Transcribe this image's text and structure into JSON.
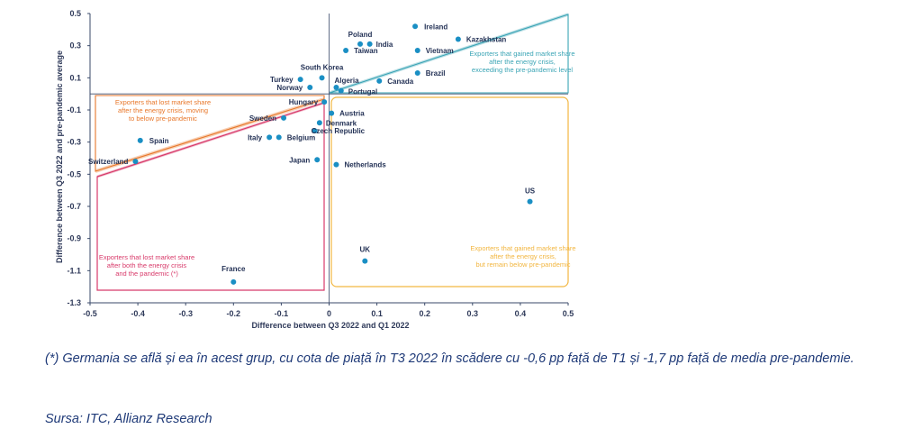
{
  "chart_data": {
    "type": "scatter",
    "title": "",
    "xlabel": "Difference between Q3 2022 and Q1 2022",
    "ylabel": "Difference between Q3 2022 and pre-pandemic average",
    "xlim": [
      -0.5,
      0.5
    ],
    "ylim": [
      -1.3,
      0.5
    ],
    "x_ticks": [
      "-0.5",
      "-0.4",
      "-0.3",
      "-0.2",
      "-0.1",
      "0",
      "0.1",
      "0.2",
      "0.3",
      "0.4",
      "0.5"
    ],
    "y_ticks": [
      "0.5",
      "0.3",
      "0.1",
      "-0.1",
      "-0.3",
      "-0.5",
      "-0.7",
      "-0.9",
      "-1.1",
      "-1.3"
    ],
    "point_color": "#1a8fc4",
    "points": [
      {
        "label": "Ireland",
        "x": 0.18,
        "y": 0.42
      },
      {
        "label": "Kazakhstan",
        "x": 0.27,
        "y": 0.34
      },
      {
        "label": "Poland",
        "x": 0.065,
        "y": 0.31
      },
      {
        "label": "India",
        "x": 0.085,
        "y": 0.31
      },
      {
        "label": "Taiwan",
        "x": 0.035,
        "y": 0.27
      },
      {
        "label": "Vietnam",
        "x": 0.185,
        "y": 0.27
      },
      {
        "label": "South Korea",
        "x": -0.015,
        "y": 0.1
      },
      {
        "label": "Brazil",
        "x": 0.185,
        "y": 0.13
      },
      {
        "label": "Turkey",
        "x": -0.06,
        "y": 0.09
      },
      {
        "label": "Algeria",
        "x": 0.015,
        "y": 0.04
      },
      {
        "label": "Canada",
        "x": 0.105,
        "y": 0.08
      },
      {
        "label": "Norway",
        "x": -0.04,
        "y": 0.04
      },
      {
        "label": "Portugal",
        "x": 0.025,
        "y": 0.02
      },
      {
        "label": "Hungary",
        "x": -0.01,
        "y": -0.05
      },
      {
        "label": "Austria",
        "x": 0.005,
        "y": -0.12
      },
      {
        "label": "Sweden",
        "x": -0.095,
        "y": -0.15
      },
      {
        "label": "Denmark",
        "x": -0.02,
        "y": -0.18
      },
      {
        "label": "Czech Republic",
        "x": -0.03,
        "y": -0.23
      },
      {
        "label": "Spain",
        "x": -0.395,
        "y": -0.29
      },
      {
        "label": "Italy",
        "x": -0.125,
        "y": -0.27
      },
      {
        "label": "Belgium",
        "x": -0.105,
        "y": -0.27
      },
      {
        "label": "Switzerland",
        "x": -0.405,
        "y": -0.42
      },
      {
        "label": "Japan",
        "x": -0.025,
        "y": -0.41
      },
      {
        "label": "Netherlands",
        "x": 0.015,
        "y": -0.44
      },
      {
        "label": "US",
        "x": 0.42,
        "y": -0.67
      },
      {
        "label": "UK",
        "x": 0.075,
        "y": -1.04
      },
      {
        "label": "France",
        "x": -0.2,
        "y": -1.17
      }
    ],
    "regions": [
      {
        "label": "Exporters that gained market share after the energy crisis, exceeding the pre-pandemic level",
        "color": "#3aa4b5"
      },
      {
        "label": "Exporters that lost market share after the energy crisis, moving to below pre-pandemic",
        "color": "#e8772a"
      },
      {
        "label": "Exporters that lost market share after both the energy crisis and the pandemic (*)",
        "color": "#d83a6a"
      },
      {
        "label": "Exporters that gained market share after the energy crisis, but remain below pre-pandemic",
        "color": "#f2b640"
      }
    ]
  },
  "footnote": {
    "note": "(*) Germania se află și ea în acest grup, cu cota de piață în T3 2022 în scădere cu -0,6 pp față de T1 și -1,7 pp față de media pre-pandemie.",
    "source": "Sursa: ITC, Allianz Research"
  }
}
